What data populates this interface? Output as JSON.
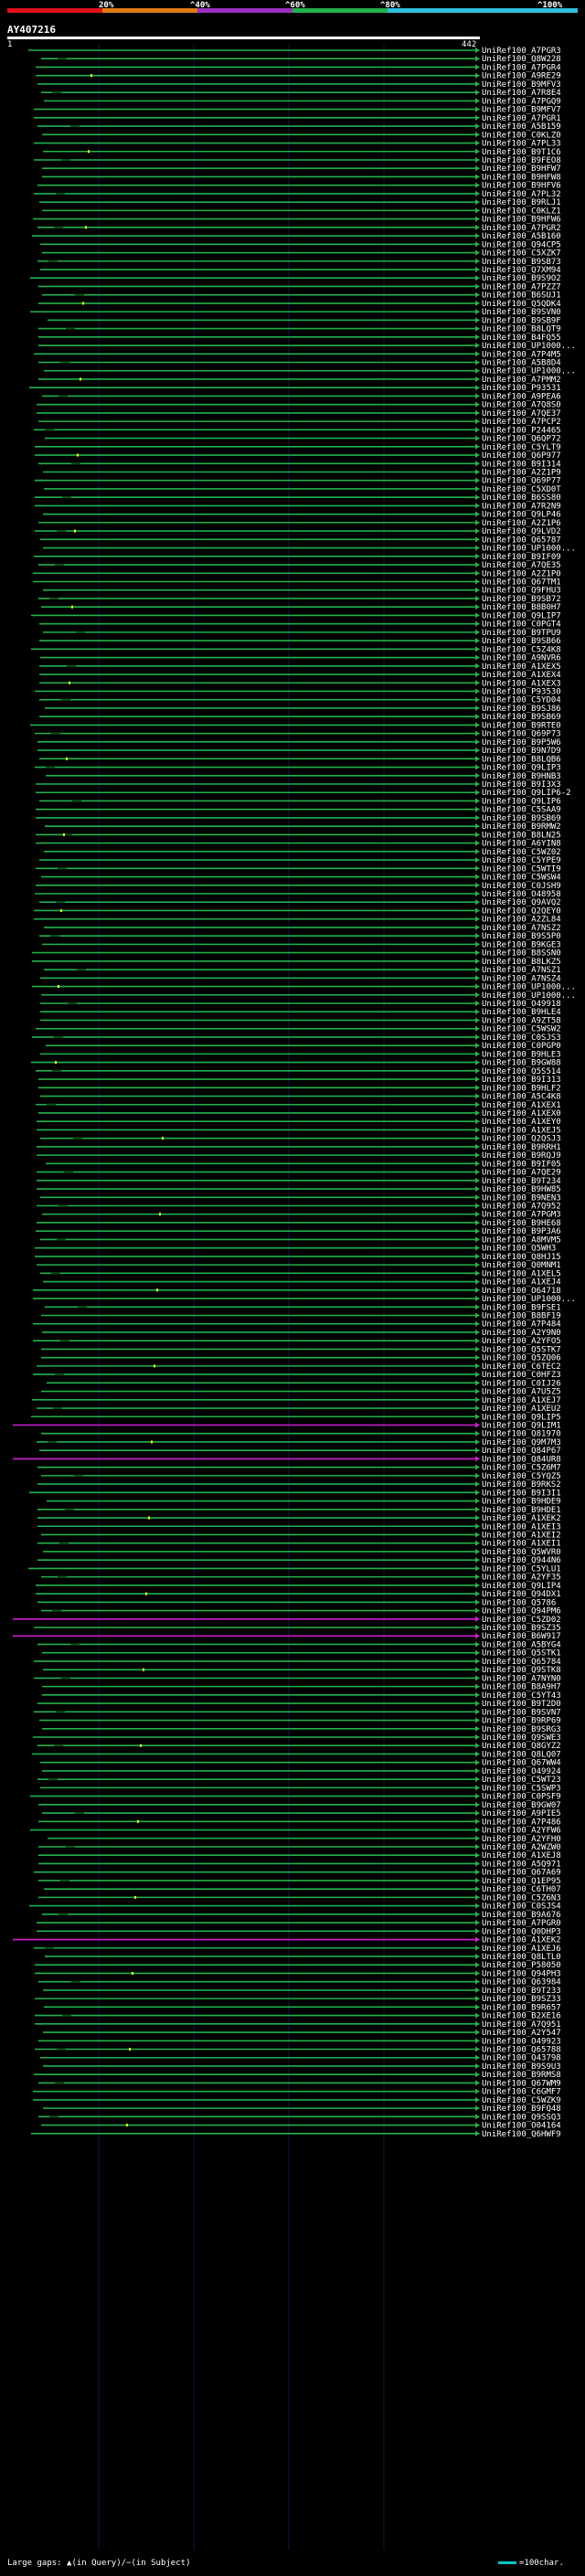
{
  "scale": {
    "ticks": [
      "20%",
      "^40%",
      "^60%",
      "^80%",
      "^100%"
    ],
    "colors": [
      "#e0101a",
      "#e07a10",
      "#9b2fc0",
      "#22b14c",
      "#2dbfe0"
    ]
  },
  "query": {
    "id": "AY407216",
    "start": "1",
    "end": "442"
  },
  "legend": {
    "large_gaps": "Large gaps: ▲(in Query)/−(in Subject)",
    "scale_note": "=100char."
  },
  "colors": {
    "normal_hit": "#22b14c",
    "long_gap_hit": "#d020d0",
    "background": "#000000",
    "marker": "#ffff00"
  },
  "hits": [
    "UniRef100_A7PGR3",
    "UniRef100_Q8W228",
    "UniRef100_A7PGR4",
    "UniRef100_A9RE29",
    "UniRef100_B9MFV3",
    "UniRef100_A7R8E4",
    "UniRef100_A7PGQ9",
    "UniRef100_B9MFV7",
    "UniRef100_A7PGR1",
    "UniRef100_A5B159",
    "UniRef100_C0KLZ0",
    "UniRef100_A7PL33",
    "UniRef100_B9T1C6",
    "UniRef100_B9FEO8",
    "UniRef100_B9HFW7",
    "UniRef100_B9HFW8",
    "UniRef100_B9HFV6",
    "UniRef100_A7PL32",
    "UniRef100_B9RLJ1",
    "UniRef100_C0KLZ1",
    "UniRef100_B9HFW6",
    "UniRef100_A7PGR2",
    "UniRef100_A5B160",
    "UniRef100_Q94CP5",
    "UniRef100_C5XZK7",
    "UniRef100_B9SB73",
    "UniRef100_Q7XM94",
    "UniRef100_B9S9O2",
    "UniRef100_A7PZZ7",
    "UniRef100_B6SUJ1",
    "UniRef100_Q5QDK4",
    "UniRef100_B9SVN0",
    "UniRef100_B9SB9F",
    "UniRef100_B8LQT9",
    "UniRef100_B4FQ55",
    "UniRef100_UP1000...",
    "UniRef100_A7P4M5",
    "UniRef100_A5B8D4",
    "UniRef100_UP1000...",
    "UniRef100_A7PMM2",
    "UniRef100_P93531",
    "UniRef100_A9PEA6",
    "UniRef100_A7Q8S0",
    "UniRef100_A7QE37",
    "UniRef100_A7PCP2",
    "UniRef100_P24465",
    "UniRef100_Q6QP72",
    "UniRef100_C5YLT9",
    "UniRef100_Q6P977",
    "UniRef100_B9I314",
    "UniRef100_A2Z1P9",
    "UniRef100_Q69P77",
    "UniRef100_C5XD0T",
    "UniRef100_B6SS80",
    "UniRef100_A7R2N9",
    "UniRef100_Q9LP46",
    "UniRef100_A2Z1P6",
    "UniRef100_Q9LVD2",
    "UniRef100_Q65787",
    "UniRef100_UP1000...",
    "UniRef100_B9IF09",
    "UniRef100_A7QE35",
    "UniRef100_A2Z1P0",
    "UniRef100_Q67TM1",
    "UniRef100_Q9FHU3",
    "UniRef100_B9SB72",
    "UniRef100_B8B0H7",
    "UniRef100_Q9LIP7",
    "UniRef100_C0PGT4",
    "UniRef100_B9TPU9",
    "UniRef100_B9SB66",
    "UniRef100_C5Z4K8",
    "UniRef100_A9NVR6",
    "UniRef100_A1XEX5",
    "UniRef100_A1XEX4",
    "UniRef100_A1XEX3",
    "UniRef100_P93530",
    "UniRef100_C5YD04",
    "UniRef100_B9SJ86",
    "UniRef100_B9SB69",
    "UniRef100_B9RTE0",
    "UniRef100_Q69P73",
    "UniRef100_B9P5W6",
    "UniRef100_B9N7D9",
    "UniRef100_B8LQB6",
    "UniRef100_Q9LIP3",
    "UniRef100_B9HNB3",
    "UniRef100_B9I3X3",
    "UniRef100_Q9LIP6-2",
    "UniRef100_Q9LIP6",
    "UniRef100_C5SAA9",
    "UniRef100_B9SB69",
    "UniRef100_B9RMW2",
    "UniRef100_B8LN25",
    "UniRef100_A6YIN8",
    "UniRef100_C5WZ02",
    "UniRef100_C5YPE9",
    "UniRef100_C5WTI9",
    "UniRef100_C5WSW4",
    "UniRef100_C0JSH9",
    "UniRef100_O48958",
    "UniRef100_Q9AVQ2",
    "UniRef100_Q2QEY0",
    "UniRef100_A2ZL84",
    "UniRef100_A7NSZ2",
    "UniRef100_B9S5P0",
    "UniRef100_B9KGE3",
    "UniRef100_B8SSN0",
    "UniRef100_B8LKZ5",
    "UniRef100_A7NSZ1",
    "UniRef100_A7NSZ4",
    "UniRef100_UP1000...",
    "UniRef100_UP1000...",
    "UniRef100_O49918",
    "UniRef100_B9HLE4",
    "UniRef100_A9ZT58",
    "UniRef100_C5WSW2",
    "UniRef100_C0SJS3",
    "UniRef100_C0PGP0",
    "UniRef100_B9HLE3",
    "UniRef100_B9GW88",
    "UniRef100_Q5S514",
    "UniRef100_B9I313",
    "UniRef100_B9HLF2",
    "UniRef100_A5C4K8",
    "UniRef100_A1XEX1",
    "UniRef100_A1XEX0",
    "UniRef100_A1XEY0",
    "UniRef100_A1XEJ5",
    "UniRef100_Q2QSJ3",
    "UniRef100_B9RRH1",
    "UniRef100_B9RQJ9",
    "UniRef100_B9IF05",
    "UniRef100_A7QE29",
    "UniRef100_B9T234",
    "UniRef100_B9HW85",
    "UniRef100_B9NEN3",
    "UniRef100_A7Q952",
    "UniRef100_A7PGM3",
    "UniRef100_B9HE68",
    "UniRef100_B9P3A6",
    "UniRef100_A8MVM5",
    "UniRef100_Q5WH3",
    "UniRef100_Q8HJ15",
    "UniRef100_Q0MNM1",
    "UniRef100_A1XEL5",
    "UniRef100_A1XEJ4",
    "UniRef100_O64718",
    "UniRef100_UP1000...",
    "UniRef100_B9FSE1",
    "UniRef100_B8BF19",
    "UniRef100_A7P484",
    "UniRef100_A2Y9N0",
    "UniRef100_A2YFO5",
    "UniRef100_Q5STK7",
    "UniRef100_Q5ZQ06",
    "UniRef100_C6TEC2",
    "UniRef100_C0HFZ3",
    "UniRef100_C0IJ26",
    "UniRef100_A7U5Z5",
    "UniRef100_A1XEJ7",
    "UniRef100_A1XEU2",
    "UniRef100_Q9LIP5",
    "UniRef100_Q9LIM1",
    "UniRef100_Q81970",
    "UniRef100_Q9M7M3",
    "UniRef100_Q84P67",
    "UniRef100_Q84UR8",
    "UniRef100_C5Z6M7",
    "UniRef100_C5YQZ5",
    "UniRef100_B9RKS2",
    "UniRef100_B9I3I1",
    "UniRef100_B9HDE9",
    "UniRef100_B9HDE1",
    "UniRef100_A1XEK2",
    "UniRef100_A1XEI3",
    "UniRef100_A1XEI2",
    "UniRef100_A1XEI1",
    "UniRef100_Q5WVR0",
    "UniRef100_Q944N6",
    "UniRef100_C5YLU1",
    "UniRef100_A2YF35",
    "UniRef100_Q9LIP4",
    "UniRef100_Q94DX1",
    "UniRef100_Q5786",
    "UniRef100_Q94PM6",
    "UniRef100_C5ZD02",
    "UniRef100_B9SZ35",
    "UniRef100_B6W917",
    "UniRef100_A5BYG4",
    "UniRef100_Q5STK1",
    "UniRef100_Q65784",
    "UniRef100_Q9STK8",
    "UniRef100_A7NYN0",
    "UniRef100_B8A9H7",
    "UniRef100_C5YT43",
    "UniRef100_B9T2D0",
    "UniRef100_B9SVN7",
    "UniRef100_B9RP69",
    "UniRef100_B9SRG3",
    "UniRef100_Q9SWE3",
    "UniRef100_Q8GYZ2",
    "UniRef100_Q8LQ07",
    "UniRef100_Q67WW4",
    "UniRef100_O49924",
    "UniRef100_C5WT23",
    "UniRef100_C5SWP3",
    "UniRef100_C0PSF9",
    "UniRef100_B9GW07",
    "UniRef100_A9PIE5",
    "UniRef100_A7P486",
    "UniRef100_A2YFW6",
    "UniRef100_A2YFH0",
    "UniRef100_A2WZW0",
    "UniRef100_A1XEJ8",
    "UniRef100_A5Q971",
    "UniRef100_Q67A69",
    "UniRef100_Q1EP95",
    "UniRef100_C6TH07",
    "UniRef100_C5Z6N3",
    "UniRef100_C0SJS4",
    "UniRef100_B9A676",
    "UniRef100_A7PGR0",
    "UniRef100_Q0DHP3",
    "UniRef100_A1XEK2",
    "UniRef100_A1XEJ6",
    "UniRef100_Q8LTL0",
    "UniRef100_P58050",
    "UniRef100_Q94PH3",
    "UniRef100_Q63984",
    "UniRef100_B9T233",
    "UniRef100_B9SZ33",
    "UniRef100_B9R657",
    "UniRef100_B2XE16",
    "UniRef100_A7Q951",
    "UniRef100_A2Y547",
    "UniRef100_O49923",
    "UniRef100_Q65788",
    "UniRef100_Q43798",
    "UniRef100_B9S9U3",
    "UniRef100_B9RMS8",
    "UniRef100_Q67WM9",
    "UniRef100_C6GMF7",
    "UniRef100_C5WZK9",
    "UniRef100_B9FQ48",
    "UniRef100_Q9SSQ3",
    "UniRef100_O04164",
    "UniRef100_Q6HWF9"
  ]
}
